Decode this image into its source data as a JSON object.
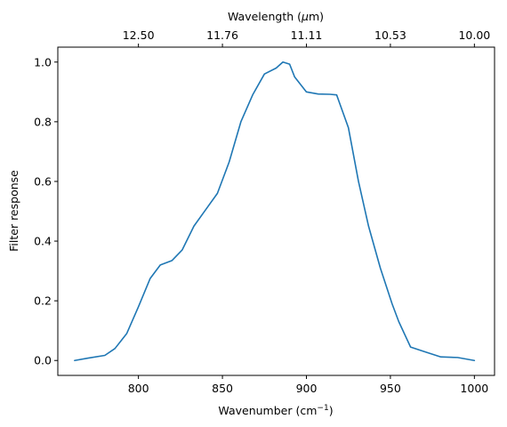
{
  "chart_data": {
    "type": "line",
    "xlabel": "Wavenumber (cm",
    "xlabel_sup": "−1",
    "xlabel_suffix": ")",
    "ylabel": "Filter response",
    "top_xlabel_pre": "Wavelength (",
    "top_xlabel_mu": "μ",
    "top_xlabel_post": "m)",
    "xlim": [
      752,
      1012
    ],
    "ylim": [
      -0.05,
      1.05
    ],
    "xticks": [
      800,
      850,
      900,
      950,
      1000
    ],
    "xtick_labels": [
      "800",
      "850",
      "900",
      "950",
      "1000"
    ],
    "yticks": [
      0.0,
      0.2,
      0.4,
      0.6,
      0.8,
      1.0
    ],
    "ytick_labels": [
      "0.0",
      "0.2",
      "0.4",
      "0.6",
      "0.8",
      "1.0"
    ],
    "top_xticks": [
      800,
      850,
      900,
      950,
      1000
    ],
    "top_xtick_labels": [
      "12.50",
      "11.76",
      "11.11",
      "10.53",
      "10.00"
    ],
    "grid": false,
    "series": [
      {
        "color": "#1f77b4",
        "x": [
          762,
          770,
          780,
          786,
          793,
          800,
          807,
          813,
          820,
          826,
          833,
          840,
          847,
          854,
          861,
          868,
          875,
          882,
          886,
          890,
          893,
          900,
          907,
          914,
          918,
          925,
          931,
          937,
          944,
          951,
          955,
          962,
          970,
          980,
          990,
          1000
        ],
        "y": [
          0.0,
          0.008,
          0.017,
          0.04,
          0.09,
          0.18,
          0.275,
          0.32,
          0.335,
          0.37,
          0.45,
          0.505,
          0.56,
          0.665,
          0.8,
          0.89,
          0.96,
          0.98,
          1.0,
          0.993,
          0.95,
          0.9,
          0.893,
          0.892,
          0.89,
          0.78,
          0.6,
          0.45,
          0.31,
          0.19,
          0.13,
          0.045,
          0.03,
          0.012,
          0.01,
          0.0
        ]
      }
    ]
  }
}
